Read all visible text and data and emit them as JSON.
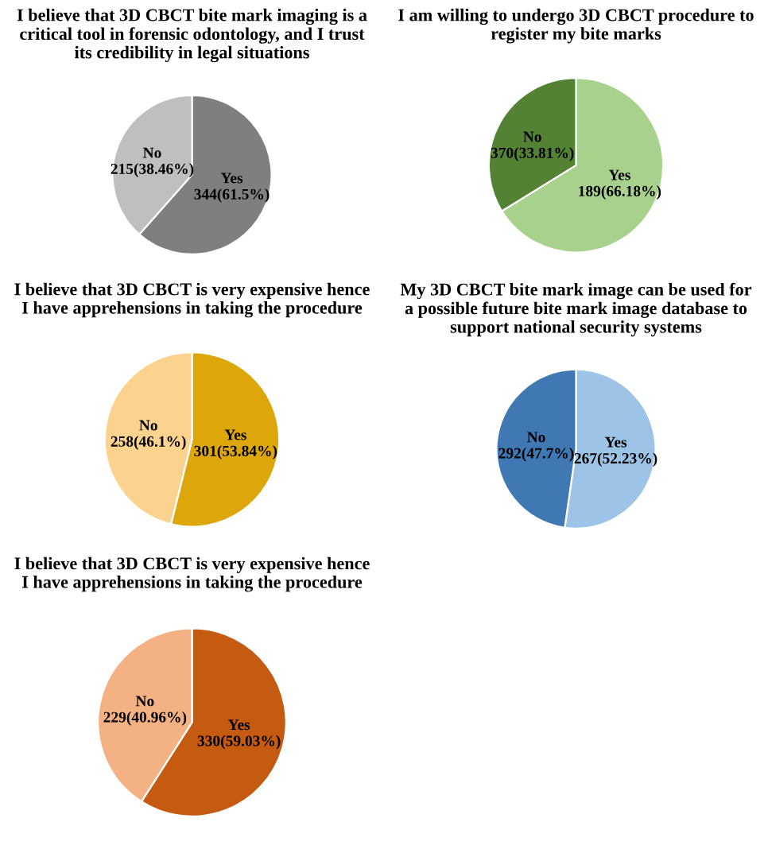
{
  "chart_data": [
    {
      "type": "pie",
      "title": "I believe that 3D CBCT bite mark imaging is a critical tool in forensic odontology, and I trust its credibility in legal situations",
      "categories": [
        "Yes",
        "No"
      ],
      "values": [
        61.5,
        38.46
      ],
      "value_labels": [
        "344(61.5%)",
        "215(38.46%)"
      ],
      "colors": [
        "#7f7f7f",
        "#bfbfbf"
      ]
    },
    {
      "type": "pie",
      "title": "I am willing to undergo 3D CBCT procedure to register my bite marks",
      "categories": [
        "Yes",
        "No"
      ],
      "values": [
        66.18,
        33.81
      ],
      "value_labels": [
        "189(66.18%)",
        "370(33.81%)"
      ],
      "colors": [
        "#a9d18e",
        "#548235"
      ]
    },
    {
      "type": "pie",
      "title": "I believe that 3D CBCT is very expensive hence I have apprehensions in taking the procedure",
      "categories": [
        "Yes",
        "No"
      ],
      "values": [
        53.84,
        46.1
      ],
      "value_labels": [
        "301(53.84%)",
        "258(46.1%)"
      ],
      "colors": [
        "#dda60a",
        "#fbd38e"
      ]
    },
    {
      "type": "pie",
      "title": "My 3D CBCT bite mark image can be used for a possible future bite mark image database to support national security systems",
      "categories": [
        "Yes",
        "No"
      ],
      "values": [
        52.23,
        47.7
      ],
      "value_labels": [
        "267(52.23%)",
        "292(47.7%)"
      ],
      "colors": [
        "#9dc3e6",
        "#3f78b3"
      ]
    },
    {
      "type": "pie",
      "title": "I believe that 3D CBCT is very expensive hence I have apprehensions in taking the procedure",
      "categories": [
        "Yes",
        "No"
      ],
      "values": [
        59.03,
        40.96
      ],
      "value_labels": [
        "330(59.03%)",
        "229(40.96%)"
      ],
      "colors": [
        "#c55a11",
        "#f4b183"
      ]
    }
  ]
}
